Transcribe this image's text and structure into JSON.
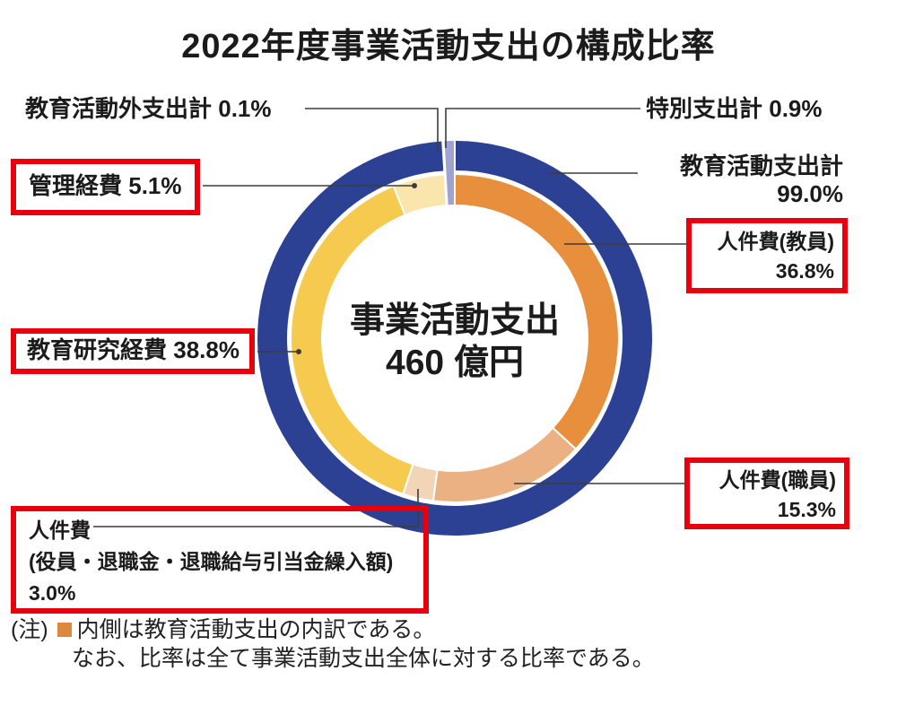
{
  "title": "2022年度事業活動支出の構成比率",
  "center_label": {
    "line1": "事業活動支出",
    "line2": "460 億円"
  },
  "callouts": {
    "gai": {
      "label": "教育活動外支出計",
      "pct": "0.1%"
    },
    "tokubetsu": {
      "label": "特別支出計",
      "pct": "0.9%"
    },
    "kyoikukei": {
      "label": "教育活動支出計",
      "pct": "99.0%"
    },
    "kyoin": {
      "label": "人件費(教員)",
      "pct": "36.8%"
    },
    "shokuin": {
      "label": "人件費(職員)",
      "pct": "15.3%"
    },
    "kanri": {
      "label": "管理経費",
      "pct": "5.1%"
    },
    "kenkyu": {
      "label": "教育研究経費",
      "pct": "38.8%"
    },
    "yakuin": {
      "label": "人件費",
      "sub": "(役員・退職金・退職給与引当金繰入額)",
      "pct": "3.0%"
    }
  },
  "note": {
    "prefix": "(注)",
    "line1": "内側は教育活動支出の内訳である。",
    "line2": "なお、比率は全て事業活動支出全体に対する比率である。"
  },
  "colors": {
    "highlight_red": "#E8000D",
    "note_marker_orange": "#DD883C"
  },
  "chart_data": {
    "type": "pie",
    "subtype": "double-donut",
    "title": "2022年度事業活動支出の構成比率",
    "center_text": "事業活動支出 460 億円",
    "total_value_oku_yen": 460,
    "units": "%",
    "start_angle_deg": 0,
    "direction": "clockwise",
    "rings": {
      "outer": {
        "description": "事業活動支出全体の構成",
        "segments": [
          {
            "label": "教育活動支出計",
            "value": 99.0,
            "color": "#2C4094",
            "band": "outer"
          },
          {
            "label": "教育活動外支出計",
            "value": 0.1,
            "color": "#E9EAF4",
            "band": "full"
          },
          {
            "label": "特別支出計",
            "value": 0.9,
            "color": "#9FA3D0",
            "band": "full"
          }
        ]
      },
      "inner": {
        "description": "内側は教育活動支出の内訳",
        "segments": [
          {
            "label": "人件費(教員)",
            "value": 36.8,
            "color": "#E88F3D"
          },
          {
            "label": "人件費(職員)",
            "value": 15.3,
            "color": "#EBB183"
          },
          {
            "label": "人件費(役員・退職金・退職給与引当金繰入額)",
            "value": 3.0,
            "color": "#F1D5B6"
          },
          {
            "label": "教育研究経費",
            "value": 38.8,
            "color": "#F6CA4F"
          },
          {
            "label": "管理経費",
            "value": 5.1,
            "color": "#FAE5AD"
          }
        ]
      }
    }
  }
}
